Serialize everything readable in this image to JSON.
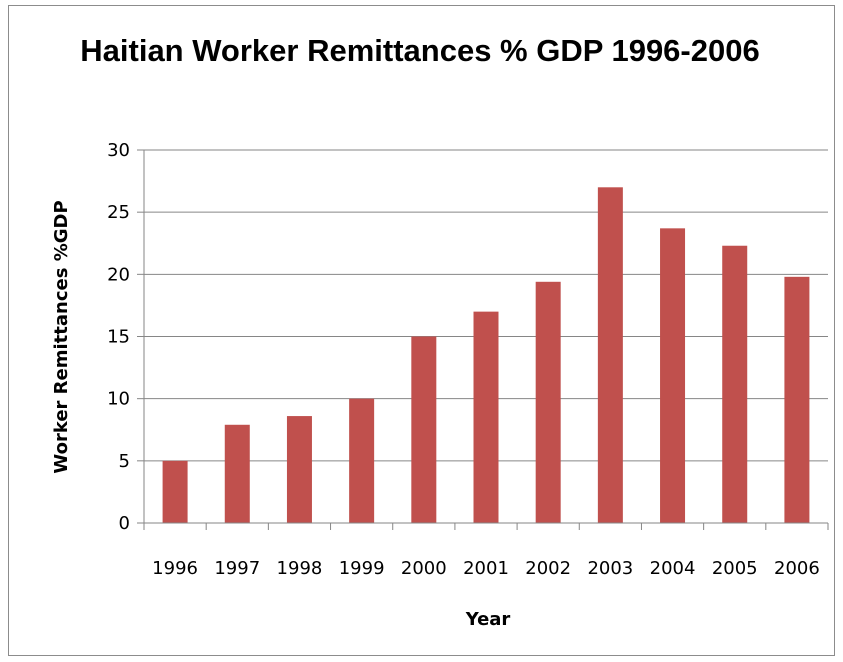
{
  "chart_data": {
    "type": "bar",
    "title": "Haitian Worker Remittances % GDP 1996-2006",
    "xlabel": "Year",
    "ylabel": "Worker Remittances %GDP",
    "categories": [
      "1996",
      "1997",
      "1998",
      "1999",
      "2000",
      "2001",
      "2002",
      "2003",
      "2004",
      "2005",
      "2006"
    ],
    "values": [
      5,
      7.9,
      8.6,
      10,
      15,
      17,
      19.4,
      27,
      23.7,
      22.3,
      19.8
    ],
    "ylim": [
      0,
      30
    ],
    "yticks": [
      0,
      5,
      10,
      15,
      20,
      25,
      30
    ],
    "grid": true,
    "legend": "none",
    "colors": {
      "bar": "#c0504d",
      "grid": "#868686",
      "axis": "#868686"
    }
  }
}
